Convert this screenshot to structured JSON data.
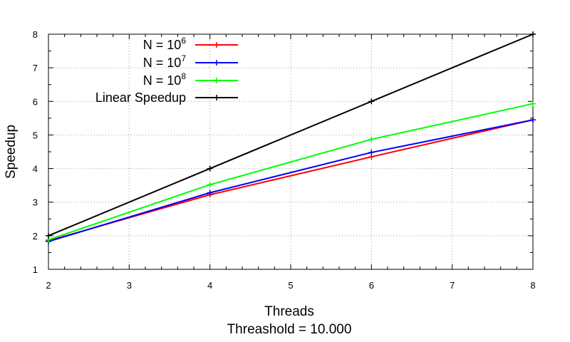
{
  "chart_data": {
    "type": "line",
    "title": "",
    "xlabel": "Threads",
    "xlabel_sub": "Threashold = 10.000",
    "ylabel": "Speedup",
    "xlim": [
      2,
      8
    ],
    "ylim": [
      1,
      8
    ],
    "x_ticks": [
      "2",
      "3",
      "4",
      "5",
      "6",
      "7",
      "8"
    ],
    "y_ticks": [
      "1",
      "2",
      "3",
      "4",
      "5",
      "6",
      "7",
      "8"
    ],
    "grid": true,
    "legend_position": "top-left",
    "series": [
      {
        "name": "N = 10^6",
        "legend_base": "N = 10",
        "legend_exp": "6",
        "color": "#ff0000",
        "x": [
          2,
          4,
          6,
          8
        ],
        "values": [
          1.85,
          3.22,
          4.35,
          5.45
        ]
      },
      {
        "name": "N = 10^7",
        "legend_base": "N = 10",
        "legend_exp": "7",
        "color": "#0000ff",
        "x": [
          2,
          4,
          6,
          8
        ],
        "values": [
          1.83,
          3.28,
          4.48,
          5.45
        ]
      },
      {
        "name": "N = 10^8",
        "legend_base": "N = 10",
        "legend_exp": "8",
        "color": "#00ff00",
        "x": [
          2,
          4,
          6,
          8
        ],
        "values": [
          1.88,
          3.52,
          4.87,
          5.93
        ]
      },
      {
        "name": "Linear Speedup",
        "legend_base": "Linear Speedup",
        "legend_exp": "",
        "color": "#000000",
        "x": [
          2,
          4,
          6,
          8
        ],
        "values": [
          2,
          4,
          6,
          8
        ]
      }
    ]
  }
}
